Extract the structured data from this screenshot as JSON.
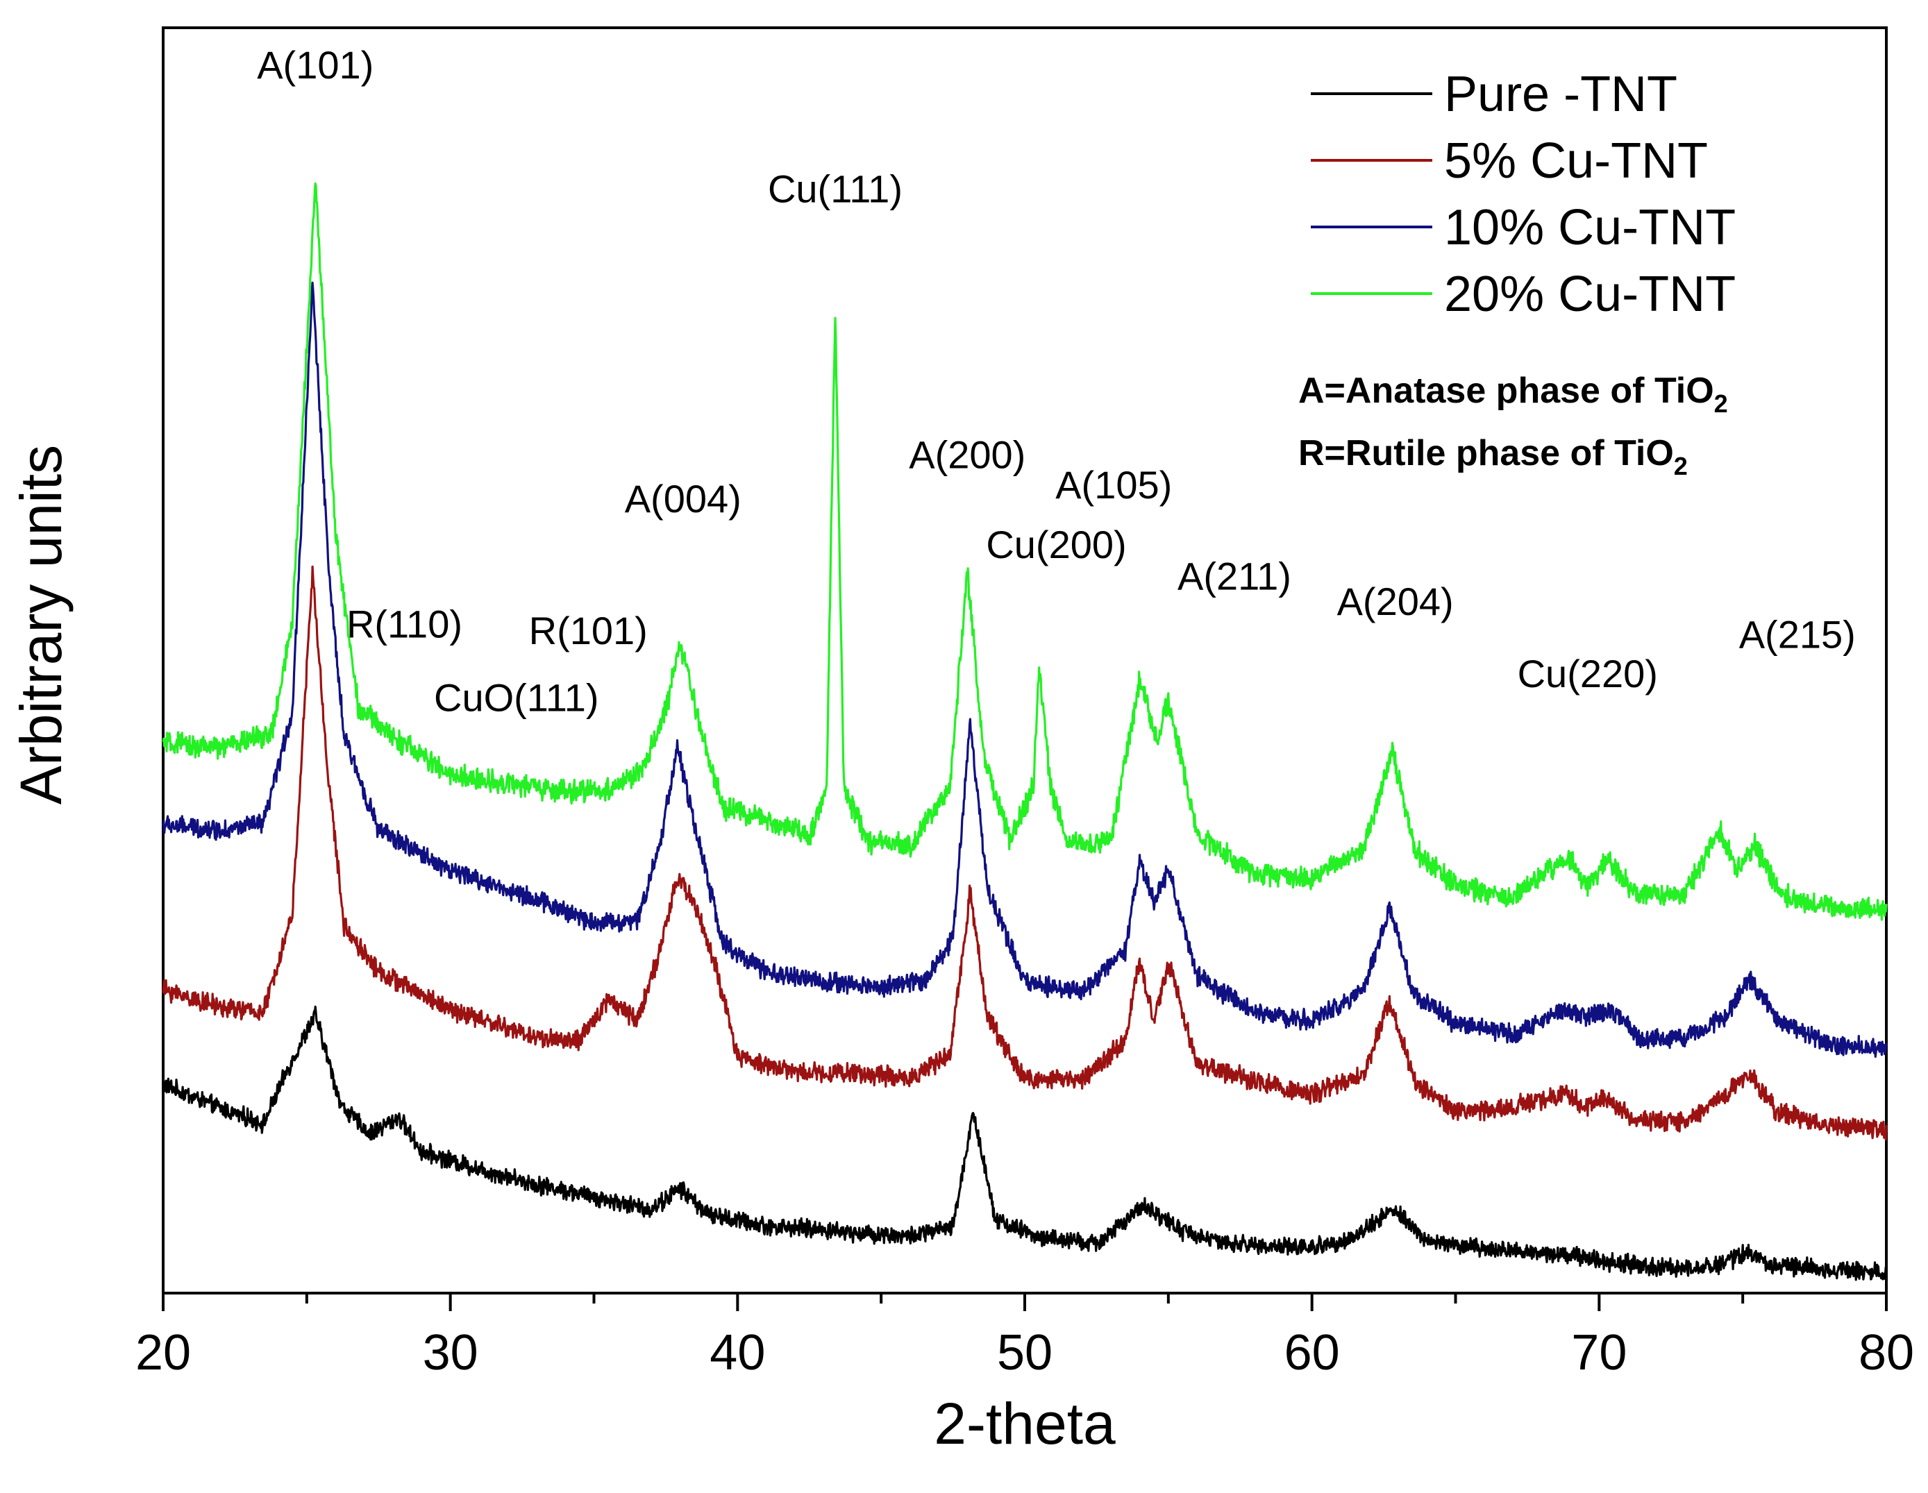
{
  "chart_data": {
    "type": "line",
    "title": "",
    "xlabel": "2-theta",
    "ylabel": "Arbitrary units",
    "xlim": [
      20,
      80
    ],
    "ylim": [
      0,
      100
    ],
    "xticks": [
      20,
      30,
      40,
      50,
      60,
      70,
      80
    ],
    "x_tick_labels": [
      "20",
      "30",
      "40",
      "50",
      "60",
      "70",
      "80"
    ],
    "y_ticks_shown": false,
    "grid": false,
    "legend_position": "top-right",
    "notes": [
      {
        "prefix": "A=Anatase phase of TiO",
        "sub": "2"
      },
      {
        "prefix": "R=Rutile phase of TiO",
        "sub": "2"
      }
    ],
    "series": [
      {
        "name": "Pure -TNT",
        "color": "#000000",
        "noise": 0.55,
        "points": [
          [
            20,
            16.5
          ],
          [
            22,
            14.6
          ],
          [
            23.5,
            13.4
          ],
          [
            24.3,
            17.5
          ],
          [
            25.3,
            22
          ],
          [
            26.2,
            14.8
          ],
          [
            27.2,
            12.6
          ],
          [
            28.2,
            13.9
          ],
          [
            29,
            11.2
          ],
          [
            31,
            9.8
          ],
          [
            33,
            8.6
          ],
          [
            35,
            7.6
          ],
          [
            37,
            6.6
          ],
          [
            38,
            8.3
          ],
          [
            39,
            6.2
          ],
          [
            41,
            5.3
          ],
          [
            43,
            5
          ],
          [
            44,
            4.8
          ],
          [
            46,
            4.5
          ],
          [
            47.5,
            5.2
          ],
          [
            48.2,
            14.3
          ],
          [
            49,
            5.8
          ],
          [
            50.5,
            4.4
          ],
          [
            52.5,
            3.9
          ],
          [
            54.2,
            6.9
          ],
          [
            55.5,
            4.9
          ],
          [
            57,
            3.9
          ],
          [
            60,
            3.6
          ],
          [
            61.5,
            4.4
          ],
          [
            62.8,
            6.7
          ],
          [
            64,
            4.1
          ],
          [
            66,
            3.5
          ],
          [
            68.8,
            3.1
          ],
          [
            70,
            2.6
          ],
          [
            72,
            2
          ],
          [
            74,
            2.1
          ],
          [
            75.2,
            3.2
          ],
          [
            76,
            2.2
          ],
          [
            78,
            1.9
          ],
          [
            80,
            1.7
          ]
        ]
      },
      {
        "name": "5% Cu-TNT",
        "color": "#9b1212",
        "noise": 0.6,
        "points": [
          [
            20,
            24
          ],
          [
            22,
            22.6
          ],
          [
            23.5,
            22.2
          ],
          [
            24.5,
            30
          ],
          [
            25.2,
            57
          ],
          [
            25.7,
            42
          ],
          [
            26.3,
            29
          ],
          [
            27.5,
            25.4
          ],
          [
            30,
            22.4
          ],
          [
            33,
            20.2
          ],
          [
            34.5,
            19.9
          ],
          [
            35.5,
            23.3
          ],
          [
            36.5,
            21.6
          ],
          [
            37.3,
            27
          ],
          [
            37.9,
            32.8
          ],
          [
            38.5,
            30.9
          ],
          [
            39.2,
            26
          ],
          [
            40,
            18.7
          ],
          [
            42,
            17.5
          ],
          [
            44,
            17.4
          ],
          [
            46,
            17
          ],
          [
            47.4,
            18.7
          ],
          [
            48.1,
            31.8
          ],
          [
            48.7,
            21.8
          ],
          [
            50,
            16.9
          ],
          [
            52,
            16.9
          ],
          [
            53.5,
            20
          ],
          [
            54,
            26.3
          ],
          [
            54.5,
            21.4
          ],
          [
            55,
            26.1
          ],
          [
            56,
            18.1
          ],
          [
            58,
            16.8
          ],
          [
            60,
            15.7
          ],
          [
            61.8,
            17.2
          ],
          [
            62.7,
            23.2
          ],
          [
            63.6,
            16.6
          ],
          [
            65,
            14.3
          ],
          [
            67,
            14.7
          ],
          [
            68.9,
            15.9
          ],
          [
            69.5,
            14.6
          ],
          [
            70.2,
            15.5
          ],
          [
            71.2,
            13.7
          ],
          [
            73,
            13.5
          ],
          [
            74.8,
            16.5
          ],
          [
            75.2,
            17.4
          ],
          [
            76.2,
            14.3
          ],
          [
            78,
            13.3
          ],
          [
            80,
            12.9
          ]
        ]
      },
      {
        "name": "10% Cu-TNT",
        "color": "#101080",
        "noise": 0.6,
        "points": [
          [
            20,
            37
          ],
          [
            22,
            36.6
          ],
          [
            23.5,
            37.1
          ],
          [
            24.5,
            46
          ],
          [
            25.2,
            79.8
          ],
          [
            25.8,
            56
          ],
          [
            26.3,
            44
          ],
          [
            27.5,
            36.6
          ],
          [
            30,
            33.4
          ],
          [
            33,
            31.1
          ],
          [
            35,
            29.3
          ],
          [
            36.5,
            29.4
          ],
          [
            37.3,
            35.5
          ],
          [
            37.9,
            43.2
          ],
          [
            38.5,
            37
          ],
          [
            39.5,
            27.6
          ],
          [
            41,
            25.3
          ],
          [
            43,
            24.6
          ],
          [
            45,
            24.2
          ],
          [
            46.5,
            24.7
          ],
          [
            47.5,
            28
          ],
          [
            48.1,
            45.2
          ],
          [
            48.7,
            32
          ],
          [
            50,
            24.6
          ],
          [
            52,
            23.8
          ],
          [
            53.5,
            27
          ],
          [
            54,
            34
          ],
          [
            54.5,
            31
          ],
          [
            55,
            33.5
          ],
          [
            56,
            25
          ],
          [
            58,
            22.2
          ],
          [
            60,
            21.5
          ],
          [
            61.8,
            24
          ],
          [
            62.7,
            30.5
          ],
          [
            63.5,
            23.8
          ],
          [
            65,
            21.3
          ],
          [
            67,
            20.5
          ],
          [
            68.8,
            22.3
          ],
          [
            69.5,
            21.9
          ],
          [
            70.5,
            22.3
          ],
          [
            71.5,
            20
          ],
          [
            73,
            20.2
          ],
          [
            74.5,
            22
          ],
          [
            75.2,
            25
          ],
          [
            76.2,
            21.5
          ],
          [
            78,
            19.7
          ],
          [
            80,
            19.3
          ]
        ]
      },
      {
        "name": "20% Cu-TNT",
        "color": "#24f024",
        "noise": 0.7,
        "points": [
          [
            20,
            43.4
          ],
          [
            22,
            43.1
          ],
          [
            23.8,
            44.3
          ],
          [
            24.5,
            53
          ],
          [
            25.3,
            87.9
          ],
          [
            26,
            60
          ],
          [
            26.8,
            46.3
          ],
          [
            28,
            44
          ],
          [
            30,
            40.9
          ],
          [
            32,
            40.3
          ],
          [
            34,
            39.6
          ],
          [
            35.5,
            39.8
          ],
          [
            36.7,
            41.3
          ],
          [
            37.5,
            46
          ],
          [
            38,
            51.5
          ],
          [
            38.6,
            45.5
          ],
          [
            39.5,
            38.3
          ],
          [
            41,
            37.4
          ],
          [
            42.5,
            36.2
          ],
          [
            43.1,
            40
          ],
          [
            43.4,
            77.7
          ],
          [
            43.7,
            40
          ],
          [
            44.5,
            35.7
          ],
          [
            46,
            35.3
          ],
          [
            47.4,
            40
          ],
          [
            48,
            57.2
          ],
          [
            48.6,
            42
          ],
          [
            49.5,
            35.8
          ],
          [
            50.3,
            40
          ],
          [
            50.5,
            49.7
          ],
          [
            50.9,
            40
          ],
          [
            51.5,
            35.5
          ],
          [
            53,
            35.7
          ],
          [
            54,
            48.5
          ],
          [
            54.6,
            43.5
          ],
          [
            55,
            47
          ],
          [
            56,
            36.3
          ],
          [
            58,
            33.2
          ],
          [
            60,
            32.7
          ],
          [
            61.8,
            35.2
          ],
          [
            62.8,
            42.8
          ],
          [
            63.6,
            35
          ],
          [
            65,
            32.2
          ],
          [
            67,
            31.2
          ],
          [
            68.9,
            34.5
          ],
          [
            69.6,
            32.2
          ],
          [
            70.3,
            34.4
          ],
          [
            71.3,
            31.4
          ],
          [
            73,
            31.5
          ],
          [
            74.2,
            36.6
          ],
          [
            74.8,
            33.5
          ],
          [
            75.4,
            35.4
          ],
          [
            76.3,
            31.5
          ],
          [
            78,
            30.5
          ],
          [
            80,
            30.2
          ]
        ]
      }
    ],
    "annotations": [
      {
        "text": "A(101)",
        "x": 25.3,
        "y": 96
      },
      {
        "text": "R(110)",
        "x": 28.4,
        "y": 51.8
      },
      {
        "text": "CuO(111)",
        "x": 32.3,
        "y": 46
      },
      {
        "text": "R(101)",
        "x": 34.8,
        "y": 51.3
      },
      {
        "text": "A(004)",
        "x": 38.1,
        "y": 61.7
      },
      {
        "text": "Cu(111)",
        "x": 43.4,
        "y": 86.2
      },
      {
        "text": "A(200)",
        "x": 48,
        "y": 65.2
      },
      {
        "text": "Cu(200)",
        "x": 51.1,
        "y": 58.1
      },
      {
        "text": "A(105)",
        "x": 53.1,
        "y": 62.8
      },
      {
        "text": "A(211)",
        "x": 57.3,
        "y": 55.6
      },
      {
        "text": "A(204)",
        "x": 62.9,
        "y": 53.6
      },
      {
        "text": "Cu(220)",
        "x": 69.6,
        "y": 47.9
      },
      {
        "text": "A(215)",
        "x": 76.9,
        "y": 51
      }
    ]
  }
}
